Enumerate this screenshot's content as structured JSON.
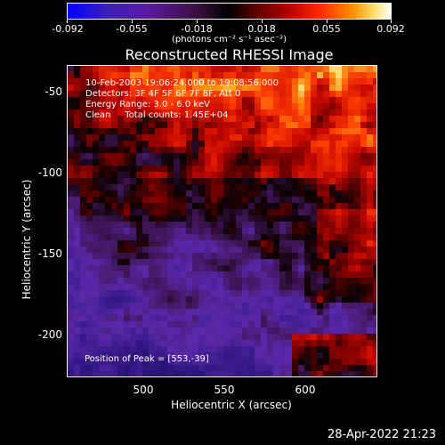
{
  "colorbar": {
    "tick_labels": [
      "-0.092",
      "-0.055",
      "-0.018",
      "0.018",
      "0.055",
      "0.092"
    ],
    "units": "(photons cm⁻² s⁻¹ asec⁻²)",
    "min": -0.092,
    "max": 0.092
  },
  "plot": {
    "title": "Reconstructed RHESSI Image",
    "info_lines": [
      "10-Feb-2003 19:06:24.000 to 19:08:56.000",
      "Detectors: 3F 4F 5F 6F 7F 8F, Att 0",
      "Energy Range: 3.0 - 6.0 keV",
      "Clean     Total counts: 1.45E+04"
    ],
    "peak_label": "Position of Peak = [553,-39]",
    "xlabel": "Heliocentric X (arcsec)",
    "ylabel": "Heliocentric Y (arcsec)",
    "x_ticks": [
      "500",
      "550",
      "600"
    ],
    "y_ticks": [
      "-50",
      "-100",
      "-150",
      "-200"
    ]
  },
  "footer": {
    "timestamp": "28-Apr-2022 21:23"
  },
  "chart_data": {
    "type": "heatmap",
    "title": "Reconstructed RHESSI Image",
    "xlabel": "Heliocentric X (arcsec)",
    "ylabel": "Heliocentric Y (arcsec)",
    "xlim": [
      453,
      643
    ],
    "ylim": [
      -226,
      -33
    ],
    "colorbar_range": [
      -0.092,
      0.092
    ],
    "peak": [
      553,
      -39
    ]
  }
}
